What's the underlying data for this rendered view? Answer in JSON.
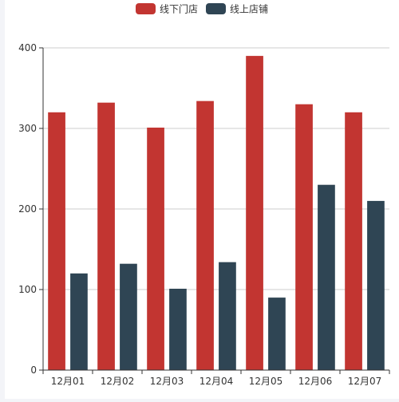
{
  "chart_data": {
    "type": "bar",
    "categories": [
      "12月01",
      "12月02",
      "12月03",
      "12月04",
      "12月05",
      "12月06",
      "12月07"
    ],
    "series": [
      {
        "name": "线下门店",
        "color": "#c23531",
        "values": [
          320,
          332,
          301,
          334,
          390,
          330,
          320
        ]
      },
      {
        "name": "线上店铺",
        "color": "#2f4554",
        "values": [
          120,
          132,
          101,
          134,
          90,
          230,
          210
        ]
      }
    ],
    "ylim": [
      0,
      400
    ],
    "yticks": [
      0,
      100,
      200,
      300,
      400
    ],
    "grid": true,
    "legend_position": "top-center"
  }
}
